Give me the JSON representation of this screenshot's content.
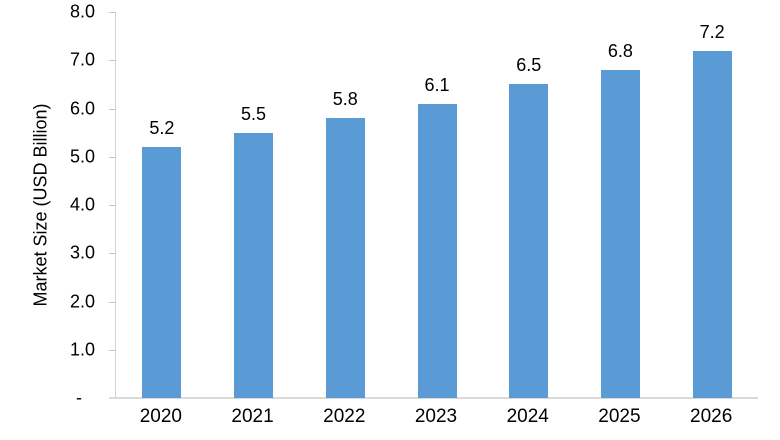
{
  "chart_data": {
    "type": "bar",
    "title": "",
    "xlabel": "",
    "ylabel": "Market Size (USD Billion)",
    "categories": [
      "2020",
      "2021",
      "2022",
      "2023",
      "2024",
      "2025",
      "2026"
    ],
    "values": [
      5.2,
      5.5,
      5.8,
      6.1,
      6.5,
      6.8,
      7.2
    ],
    "data_labels": [
      "5.2",
      "5.5",
      "5.8",
      "6.1",
      "6.5",
      "6.8",
      "7.2"
    ],
    "ylim": [
      0,
      8
    ],
    "ytick_labels": [
      "8.0",
      "7.0",
      "6.0",
      "5.0",
      "4.0",
      "3.0",
      "2.0",
      "1.0",
      "-"
    ],
    "grid": false,
    "legend": false,
    "bar_color": "#5b9bd5",
    "axis_line_color": "#d9d9d9",
    "tick_color": "#c6c6c6",
    "text_color": "#000000"
  }
}
